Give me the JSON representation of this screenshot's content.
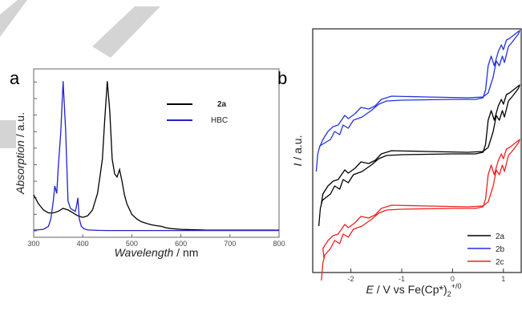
{
  "chart_data": [
    {
      "type": "line",
      "panel_label": "a",
      "xlabel": "Wavelength / nm",
      "ylabel": "Absorption / a.u.",
      "xlim": [
        300,
        800
      ],
      "ylim": [
        0,
        1.05
      ],
      "xticks": [
        300,
        400,
        500,
        600,
        700,
        800
      ],
      "legend_position": "top-right",
      "series": [
        {
          "name": "2a",
          "color": "#000000",
          "x": [
            300,
            310,
            320,
            330,
            340,
            350,
            360,
            370,
            380,
            390,
            400,
            410,
            420,
            430,
            435,
            440,
            445,
            450,
            455,
            460,
            465,
            470,
            475,
            480,
            485,
            490,
            500,
            510,
            520,
            530,
            540,
            550,
            560,
            570,
            580,
            600,
            650,
            700,
            750,
            800
          ],
          "y": [
            0.24,
            0.18,
            0.14,
            0.12,
            0.12,
            0.13,
            0.15,
            0.14,
            0.12,
            0.1,
            0.09,
            0.1,
            0.14,
            0.25,
            0.36,
            0.48,
            0.75,
            1.0,
            0.8,
            0.48,
            0.38,
            0.36,
            0.41,
            0.33,
            0.24,
            0.18,
            0.11,
            0.08,
            0.06,
            0.05,
            0.04,
            0.035,
            0.03,
            0.02,
            0.015,
            0.01,
            0.005,
            0.005,
            0.005,
            0.005
          ]
        },
        {
          "name": "HBC",
          "color": "#2222cc",
          "x": [
            300,
            320,
            330,
            335,
            340,
            343,
            347,
            350,
            355,
            360,
            365,
            370,
            375,
            380,
            385,
            388,
            390,
            393,
            397,
            402,
            410,
            430,
            450,
            500,
            600,
            700,
            800
          ],
          "y": [
            0.005,
            0.01,
            0.03,
            0.08,
            0.2,
            0.3,
            0.25,
            0.42,
            0.65,
            1.0,
            0.68,
            0.2,
            0.15,
            0.14,
            0.13,
            0.18,
            0.22,
            0.08,
            0.03,
            0.015,
            0.006,
            0.003,
            0.002,
            0.002,
            0.002,
            0.002,
            0.002
          ]
        }
      ]
    },
    {
      "type": "line",
      "panel_label": "b",
      "xlabel": "E / V vs Fe(Cp*)₂⁺/⁰",
      "ylabel": "I / a.u.",
      "xlim": [
        -2.75,
        1.35
      ],
      "xticks": [
        -2,
        -1,
        0,
        1
      ],
      "legend_position": "bottom-right",
      "series": [
        {
          "name": "2a",
          "color": "#000000"
        },
        {
          "name": "2b",
          "color": "#2233dd"
        },
        {
          "name": "2c",
          "color": "#ee2222"
        }
      ]
    }
  ]
}
